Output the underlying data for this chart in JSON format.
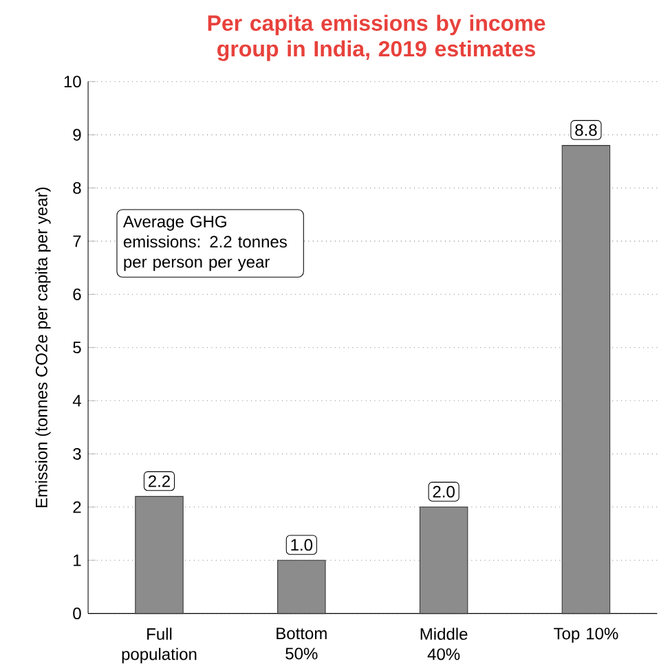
{
  "chart_data": {
    "type": "bar",
    "title": "Per capita emissions by income group in India, 2019 estimates",
    "ylabel": "Emission (tonnes CO2e per capita per year)",
    "categories": [
      "Full population",
      "Bottom 50%",
      "Middle 40%",
      "Top 10%"
    ],
    "values": [
      2.2,
      1.0,
      2.0,
      8.8
    ],
    "value_labels": [
      "2.2",
      "1.0",
      "2.0",
      "8.8"
    ],
    "color": "#8c8c8c",
    "ylim": [
      0,
      10
    ],
    "yticks": [
      0,
      1,
      2,
      3,
      4,
      5,
      6,
      7,
      8,
      9,
      10
    ],
    "grid": "y",
    "annotations": [
      "Average GHG emissions: 2.2 tonnes per person per year"
    ]
  }
}
